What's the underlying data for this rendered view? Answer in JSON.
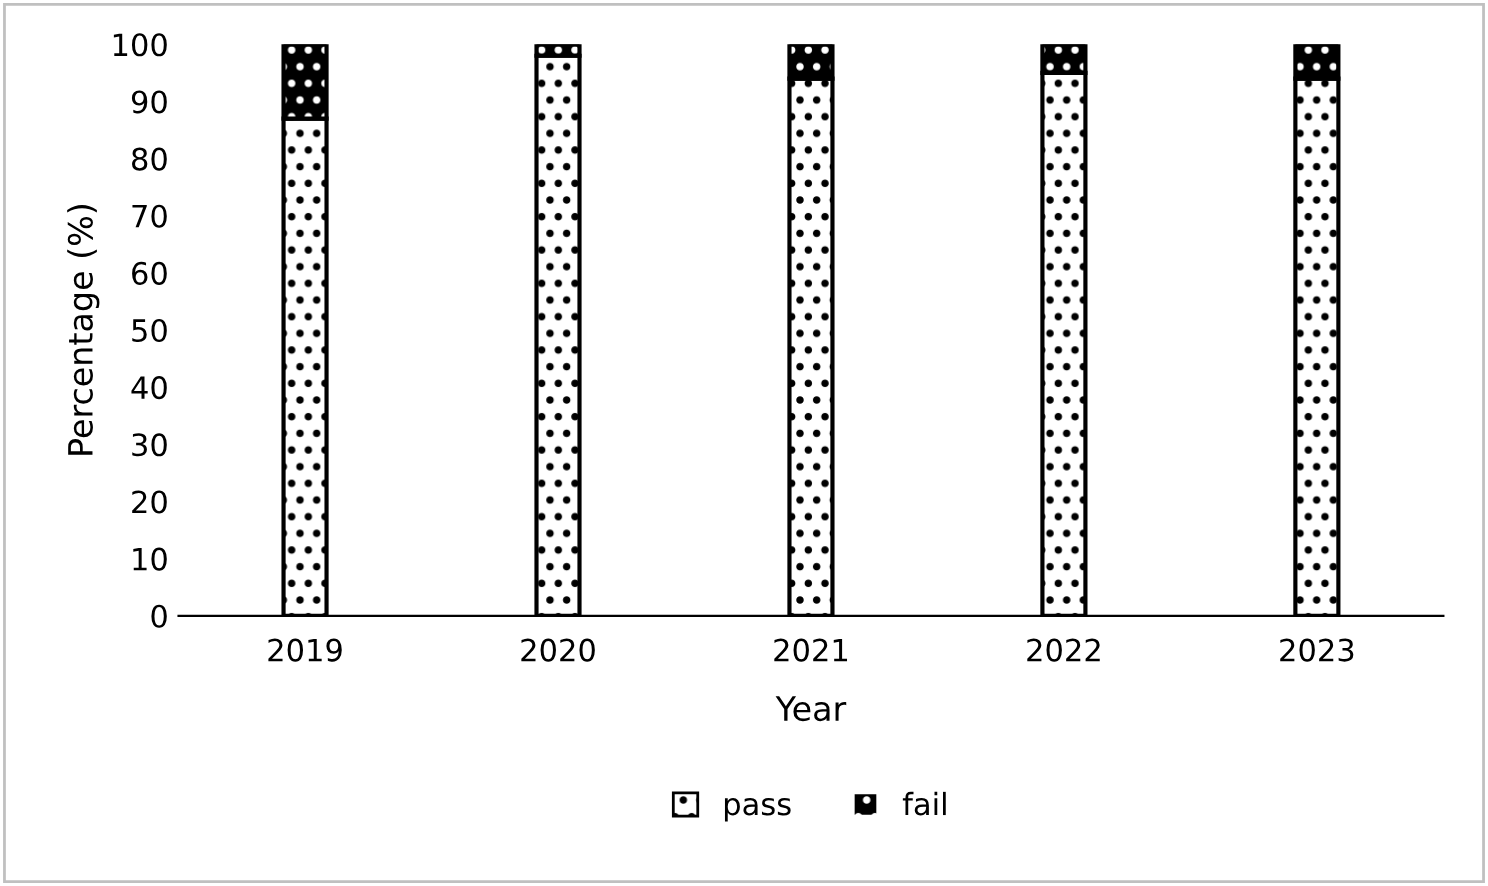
{
  "chart_data": {
    "type": "bar",
    "stacked": true,
    "xlabel": "Year",
    "ylabel": "Percentage (%)",
    "categories": [
      "2019",
      "2020",
      "2021",
      "2022",
      "2023"
    ],
    "series": [
      {
        "name": "pass",
        "color": "#ffffff",
        "values": [
          87,
          98,
          94,
          95,
          94
        ]
      },
      {
        "name": "fail",
        "color": "#000000",
        "values": [
          13,
          2,
          6,
          5,
          6
        ]
      }
    ],
    "ylim": [
      0,
      100
    ],
    "yticks": [
      0,
      10,
      20,
      30,
      40,
      50,
      60,
      70,
      80,
      90,
      100
    ],
    "grid": false,
    "legend": "bottom"
  }
}
